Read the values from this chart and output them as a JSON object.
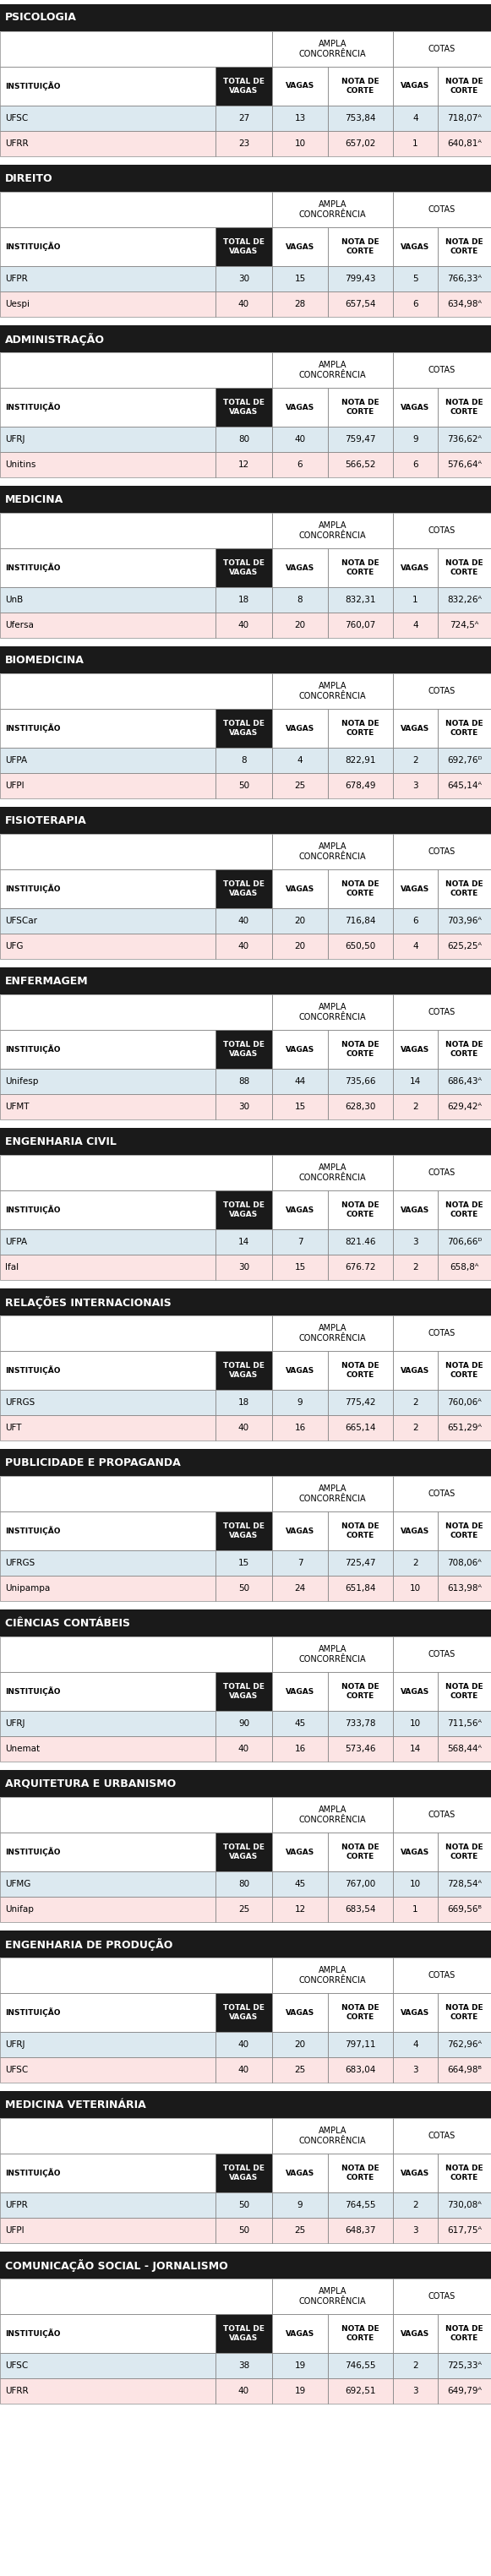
{
  "sections": [
    {
      "title": "PSICOLOGIA",
      "rows": [
        {
          "inst": "UFSC",
          "total": 27,
          "ac_vagas": 13,
          "ac_nota": "753,84",
          "c_vagas": 4,
          "c_nota": "718,07ᴬ",
          "row_color": "#dce9f0"
        },
        {
          "inst": "UFRR",
          "total": 23,
          "ac_vagas": 10,
          "ac_nota": "657,02",
          "c_vagas": 1,
          "c_nota": "640,81ᴬ",
          "row_color": "#fce4e4"
        }
      ]
    },
    {
      "title": "DIREITO",
      "rows": [
        {
          "inst": "UFPR",
          "total": 30,
          "ac_vagas": 15,
          "ac_nota": "799,43",
          "c_vagas": 5,
          "c_nota": "766,33ᴬ",
          "row_color": "#dce9f0"
        },
        {
          "inst": "Uespi",
          "total": 40,
          "ac_vagas": 28,
          "ac_nota": "657,54",
          "c_vagas": 6,
          "c_nota": "634,98ᴬ",
          "row_color": "#fce4e4"
        }
      ]
    },
    {
      "title": "ADMINISTRAÇÃO",
      "rows": [
        {
          "inst": "UFRJ",
          "total": 80,
          "ac_vagas": 40,
          "ac_nota": "759,47",
          "c_vagas": 9,
          "c_nota": "736,62ᴬ",
          "row_color": "#dce9f0"
        },
        {
          "inst": "Unitins",
          "total": 12,
          "ac_vagas": 6,
          "ac_nota": "566,52",
          "c_vagas": 6,
          "c_nota": "576,64ᴬ",
          "row_color": "#fce4e4"
        }
      ]
    },
    {
      "title": "MEDICINA",
      "rows": [
        {
          "inst": "UnB",
          "total": 18,
          "ac_vagas": 8,
          "ac_nota": "832,31",
          "c_vagas": 1,
          "c_nota": "832,26ᴬ",
          "row_color": "#dce9f0"
        },
        {
          "inst": "Ufersa",
          "total": 40,
          "ac_vagas": 20,
          "ac_nota": "760,07",
          "c_vagas": 4,
          "c_nota": "724,5ᴬ",
          "row_color": "#fce4e4"
        }
      ]
    },
    {
      "title": "BIOMEDICINA",
      "rows": [
        {
          "inst": "UFPA",
          "total": 8,
          "ac_vagas": 4,
          "ac_nota": "822,91",
          "c_vagas": 2,
          "c_nota": "692,76ᴰ",
          "row_color": "#dce9f0"
        },
        {
          "inst": "UFPI",
          "total": 50,
          "ac_vagas": 25,
          "ac_nota": "678,49",
          "c_vagas": 3,
          "c_nota": "645,14ᴬ",
          "row_color": "#fce4e4"
        }
      ]
    },
    {
      "title": "FISIOTERAPIA",
      "rows": [
        {
          "inst": "UFSCar",
          "total": 40,
          "ac_vagas": 20,
          "ac_nota": "716,84",
          "c_vagas": 6,
          "c_nota": "703,96ᴬ",
          "row_color": "#dce9f0"
        },
        {
          "inst": "UFG",
          "total": 40,
          "ac_vagas": 20,
          "ac_nota": "650,50",
          "c_vagas": 4,
          "c_nota": "625,25ᴬ",
          "row_color": "#fce4e4"
        }
      ]
    },
    {
      "title": "ENFERMAGEM",
      "rows": [
        {
          "inst": "Unifesp",
          "total": 88,
          "ac_vagas": 44,
          "ac_nota": "735,66",
          "c_vagas": 14,
          "c_nota": "686,43ᴬ",
          "row_color": "#dce9f0"
        },
        {
          "inst": "UFMT",
          "total": 30,
          "ac_vagas": 15,
          "ac_nota": "628,30",
          "c_vagas": 2,
          "c_nota": "629,42ᴬ",
          "row_color": "#fce4e4"
        }
      ]
    },
    {
      "title": "ENGENHARIA CIVIL",
      "rows": [
        {
          "inst": "UFPA",
          "total": 14,
          "ac_vagas": 7,
          "ac_nota": "821.46",
          "c_vagas": 3,
          "c_nota": "706,66ᴰ",
          "row_color": "#dce9f0"
        },
        {
          "inst": "Ifal",
          "total": 30,
          "ac_vagas": 15,
          "ac_nota": "676.72",
          "c_vagas": 2,
          "c_nota": "658,8ᴬ",
          "row_color": "#fce4e4"
        }
      ]
    },
    {
      "title": "RELAÇÕES INTERNACIONAIS",
      "rows": [
        {
          "inst": "UFRGS",
          "total": 18,
          "ac_vagas": 9,
          "ac_nota": "775,42",
          "c_vagas": 2,
          "c_nota": "760,06ᴬ",
          "row_color": "#dce9f0"
        },
        {
          "inst": "UFT",
          "total": 40,
          "ac_vagas": 16,
          "ac_nota": "665,14",
          "c_vagas": 2,
          "c_nota": "651,29ᴬ",
          "row_color": "#fce4e4"
        }
      ]
    },
    {
      "title": "PUBLICIDADE E PROPAGANDA",
      "rows": [
        {
          "inst": "UFRGS",
          "total": 15,
          "ac_vagas": 7,
          "ac_nota": "725,47",
          "c_vagas": 2,
          "c_nota": "708,06ᴬ",
          "row_color": "#dce9f0"
        },
        {
          "inst": "Unipampa",
          "total": 50,
          "ac_vagas": 24,
          "ac_nota": "651,84",
          "c_vagas": 10,
          "c_nota": "613,98ᴬ",
          "row_color": "#fce4e4"
        }
      ]
    },
    {
      "title": "CIÊNCIAS CONTÁBEIS",
      "rows": [
        {
          "inst": "UFRJ",
          "total": 90,
          "ac_vagas": 45,
          "ac_nota": "733,78",
          "c_vagas": 10,
          "c_nota": "711,56ᴬ",
          "row_color": "#dce9f0"
        },
        {
          "inst": "Unemat",
          "total": 40,
          "ac_vagas": 16,
          "ac_nota": "573,46",
          "c_vagas": 14,
          "c_nota": "568,44ᴬ",
          "row_color": "#fce4e4"
        }
      ]
    },
    {
      "title": "ARQUITETURA E URBANISMO",
      "rows": [
        {
          "inst": "UFMG",
          "total": 80,
          "ac_vagas": 45,
          "ac_nota": "767,00",
          "c_vagas": 10,
          "c_nota": "728,54ᴬ",
          "row_color": "#dce9f0"
        },
        {
          "inst": "Unifap",
          "total": 25,
          "ac_vagas": 12,
          "ac_nota": "683,54",
          "c_vagas": 1,
          "c_nota": "669,56ᴮ",
          "row_color": "#fce4e4"
        }
      ]
    },
    {
      "title": "ENGENHARIA DE PRODUÇÃO",
      "rows": [
        {
          "inst": "UFRJ",
          "total": 40,
          "ac_vagas": 20,
          "ac_nota": "797,11",
          "c_vagas": 4,
          "c_nota": "762,96ᴬ",
          "row_color": "#dce9f0"
        },
        {
          "inst": "UFSC",
          "total": 40,
          "ac_vagas": 25,
          "ac_nota": "683,04",
          "c_vagas": 3,
          "c_nota": "664,98ᴮ",
          "row_color": "#fce4e4"
        }
      ]
    },
    {
      "title": "MEDICINA VETERINÁRIA",
      "rows": [
        {
          "inst": "UFPR",
          "total": 50,
          "ac_vagas": 9,
          "ac_nota": "764,55",
          "c_vagas": 2,
          "c_nota": "730,08ᴬ",
          "row_color": "#dce9f0"
        },
        {
          "inst": "UFPI",
          "total": 50,
          "ac_vagas": 25,
          "ac_nota": "648,37",
          "c_vagas": 3,
          "c_nota": "617,75ᴬ",
          "row_color": "#fce4e4"
        }
      ]
    },
    {
      "title": "COMUNICAÇÃO SOCIAL - JORNALISMO",
      "rows": [
        {
          "inst": "UFSC",
          "total": 38,
          "ac_vagas": 19,
          "ac_nota": "746,55",
          "c_vagas": 2,
          "c_nota": "725,33ᴬ",
          "row_color": "#dce9f0"
        },
        {
          "inst": "UFRR",
          "total": 40,
          "ac_vagas": 19,
          "ac_nota": "692,51",
          "c_vagas": 3,
          "c_nota": "649,79ᴬ",
          "row_color": "#fce4e4"
        }
      ]
    }
  ],
  "header_bg": "#1a1a1a",
  "header_fg": "#ffffff",
  "subheader_bg": "#ffffff",
  "col_header_bg": "#1a1a1a",
  "col_header_fg": "#ffffff",
  "border_color": "#888888",
  "text_color": "#000000",
  "ampla_concorrencia_label": "AMPLA\nCONCORRÊNCIA",
  "cotas_label": "COTAS",
  "col_labels": [
    "INSTITUIÇÃO",
    "TOTAL DE\nVAGAS",
    "VAGAS",
    "NOTA DE\nCORTE",
    "VAGAS",
    "NOTA DE\nCORTE"
  ]
}
